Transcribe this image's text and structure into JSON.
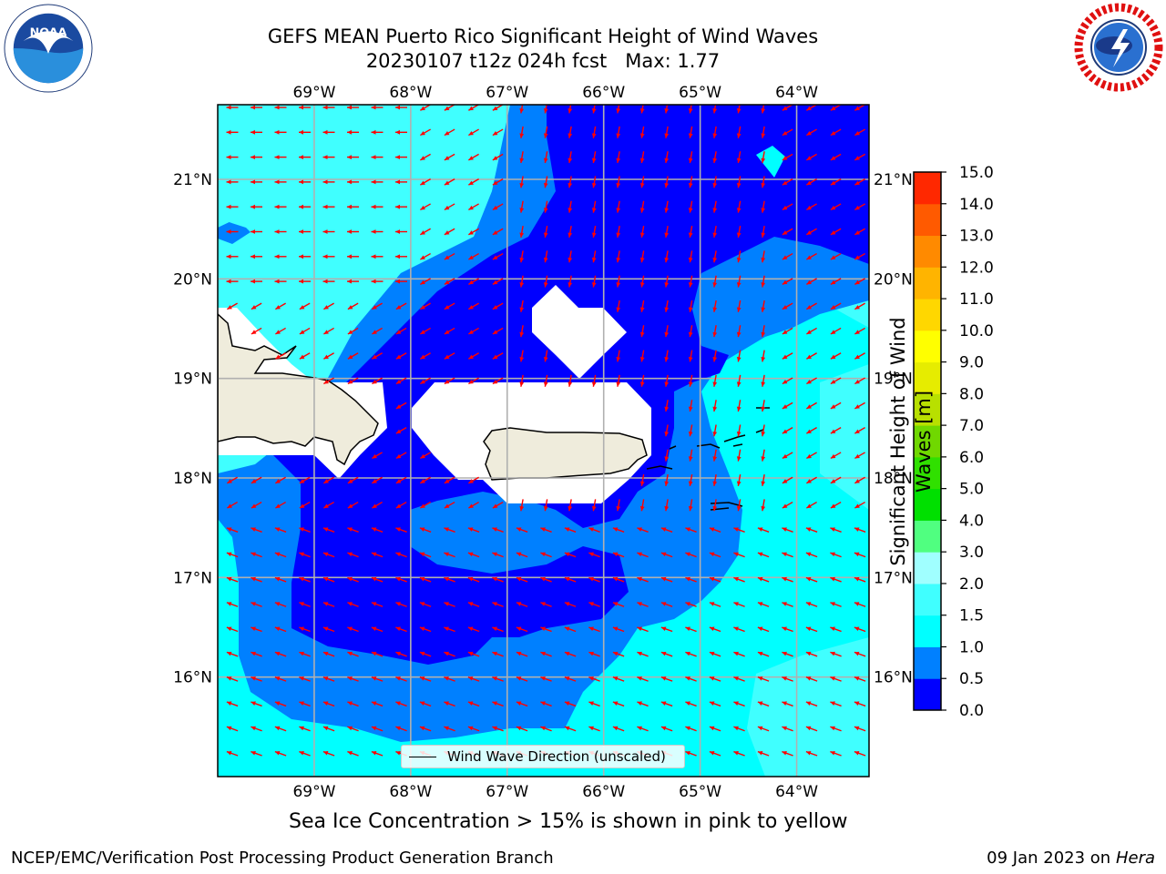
{
  "header": {
    "title_line1": "GEFS MEAN Puerto Rico Significant Height of Wind Waves",
    "title_line2": "20230107 t12z 024h fcst   Max: 1.77"
  },
  "map": {
    "lon_labels": [
      "69°W",
      "68°W",
      "67°W",
      "66°W",
      "65°W",
      "64°W"
    ],
    "lat_labels": [
      "21°N",
      "20°N",
      "19°N",
      "18°N",
      "17°N",
      "16°N"
    ],
    "lon_values": [
      -69,
      -68,
      -67,
      -66,
      -65,
      -64
    ],
    "lat_values": [
      21,
      20,
      19,
      18,
      17,
      16
    ],
    "lon_range": [
      -70.0,
      -63.25
    ],
    "lat_range": [
      15.0,
      21.75
    ],
    "land_color": "#efecdc",
    "arrow_color": "#ff0000",
    "grid": true
  },
  "legend": {
    "label": "Wind Wave Direction (unscaled)"
  },
  "colorbar": {
    "title": "Significant Height of Wind Waves [m]",
    "levels": [
      0.0,
      0.5,
      1.0,
      1.5,
      2.0,
      3.0,
      4.0,
      5.0,
      6.0,
      7.0,
      8.0,
      9.0,
      10.0,
      11.0,
      12.0,
      13.0,
      14.0,
      15.0
    ],
    "tick_labels": [
      "0.0",
      "0.5",
      "1.0",
      "1.5",
      "2.0",
      "3.0",
      "4.0",
      "5.0",
      "6.0",
      "7.0",
      "8.0",
      "9.0",
      "10.0",
      "11.0",
      "12.0",
      "13.0",
      "14.0",
      "15.0"
    ],
    "colors": [
      "#0000ff",
      "#0080ff",
      "#00ffff",
      "#40ffff",
      "#a0ffff",
      "#50ff80",
      "#00e000",
      "#30e000",
      "#70d800",
      "#b8e000",
      "#e6ec00",
      "#ffff00",
      "#ffd700",
      "#ffb400",
      "#ff8a00",
      "#ff5a00",
      "#ff2800"
    ]
  },
  "footer": {
    "ice_note": "Sea Ice Concentration > 15% is shown in pink to yellow",
    "left": "NCEP/EMC/Verification Post Processing Product Generation Branch",
    "right_date": "09 Jan 2023 on ",
    "right_host": "Hera"
  }
}
